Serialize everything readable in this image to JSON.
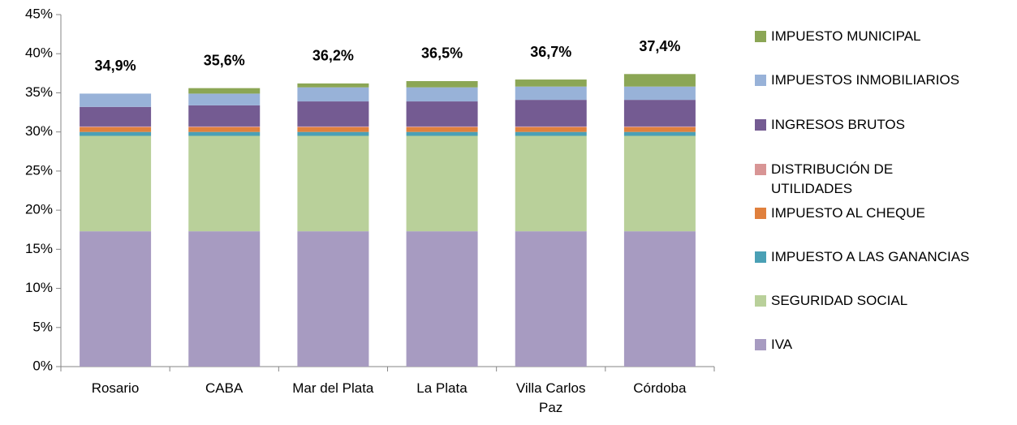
{
  "chart_data": {
    "type": "stacked_bar",
    "categories": [
      "Rosario",
      "CABA",
      "Mar del Plata",
      "La Plata",
      "Villa Carlos\nPaz",
      "Córdoba"
    ],
    "series": [
      {
        "name": "IVA",
        "color": "#a79bc1",
        "values": [
          17.3,
          17.3,
          17.3,
          17.3,
          17.3,
          17.3
        ]
      },
      {
        "name": "SEGURIDAD SOCIAL",
        "color": "#b9d09a",
        "values": [
          12.2,
          12.2,
          12.2,
          12.2,
          12.2,
          12.2
        ]
      },
      {
        "name": "IMPUESTO A LAS GANANCIAS",
        "color": "#4aa0b5",
        "values": [
          0.5,
          0.5,
          0.5,
          0.5,
          0.5,
          0.5
        ]
      },
      {
        "name": "IMPUESTO AL CHEQUE",
        "color": "#e0803d",
        "values": [
          0.6,
          0.6,
          0.6,
          0.6,
          0.6,
          0.6
        ]
      },
      {
        "name": "DISTRIBUCIÓN  DE\nUTILIDADES",
        "color": "#d89595",
        "values": [
          0.1,
          0.1,
          0.1,
          0.1,
          0.1,
          0.1
        ]
      },
      {
        "name": "INGRESOS BRUTOS",
        "color": "#745b92",
        "values": [
          2.5,
          2.7,
          3.2,
          3.2,
          3.4,
          3.4
        ]
      },
      {
        "name": "IMPUESTOS INMOBILIARIOS",
        "color": "#98b2d8",
        "values": [
          1.7,
          1.5,
          1.8,
          1.8,
          1.7,
          1.7
        ]
      },
      {
        "name": "IMPUESTO MUNICIPAL",
        "color": "#8ba655",
        "values": [
          0,
          0.7,
          0.5,
          0.8,
          0.9,
          1.6
        ]
      }
    ],
    "totals": [
      34.9,
      35.6,
      36.2,
      36.5,
      36.7,
      37.4
    ],
    "total_labels": [
      "34,9%",
      "35,6%",
      "36,2%",
      "36,5%",
      "36,7%",
      "37,4%"
    ],
    "ylim": [
      0,
      45
    ],
    "yticks": [
      {
        "value": 0,
        "label": "0%"
      },
      {
        "value": 5,
        "label": "5%"
      },
      {
        "value": 10,
        "label": "10%"
      },
      {
        "value": 15,
        "label": "15%"
      },
      {
        "value": 20,
        "label": "20%"
      },
      {
        "value": 25,
        "label": "25%"
      },
      {
        "value": 30,
        "label": "30%"
      },
      {
        "value": 35,
        "label": "35%"
      },
      {
        "value": 40,
        "label": "40%"
      },
      {
        "value": 45,
        "label": "45%"
      }
    ],
    "grid": false,
    "legend": "right"
  }
}
